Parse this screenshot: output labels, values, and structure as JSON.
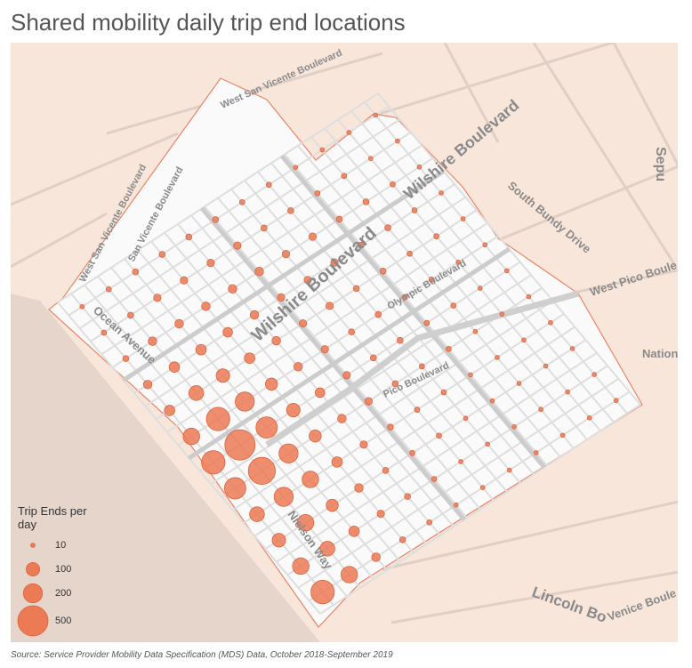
{
  "title": "Shared mobility daily trip end locations",
  "source": "Source: Service Provider Mobility Data Specification (MDS) Data, October 2018-September 2019",
  "legend": {
    "title": "Trip Ends per day",
    "sizes": [
      10,
      100,
      200,
      500
    ]
  },
  "road_labels": [
    "West San Vicente Boulevard",
    "Wilshire Boulevard",
    "South Bundy Drive",
    "Sepu",
    "West Pico Boule",
    "Nation",
    "Olympic Boulevard",
    "Pico Boulevard",
    "Ocean Avenue",
    "Nielson Way",
    "San Vicente Boulevard",
    "West San Vicente Boulevard",
    "Wilshire Boulevard",
    "Lincoln Bo",
    "Venice Boule"
  ],
  "trip_ends": [
    [
      300,
      150,
      40,
      20,
      15,
      10,
      10,
      10,
      10,
      10,
      10,
      10
    ],
    [
      150,
      120,
      60,
      30,
      20,
      15,
      10,
      10,
      10,
      10,
      10,
      10
    ],
    [
      100,
      150,
      80,
      40,
      20,
      15,
      15,
      10,
      10,
      10,
      10,
      10
    ],
    [
      120,
      200,
      150,
      60,
      30,
      20,
      15,
      15,
      10,
      10,
      10,
      10
    ],
    [
      250,
      400,
      200,
      80,
      40,
      30,
      20,
      15,
      15,
      10,
      10,
      10
    ],
    [
      300,
      500,
      250,
      100,
      50,
      30,
      20,
      20,
      15,
      15,
      10,
      10
    ],
    [
      150,
      300,
      200,
      80,
      40,
      30,
      20,
      20,
      15,
      15,
      10,
      10
    ],
    [
      60,
      120,
      100,
      60,
      40,
      30,
      30,
      20,
      20,
      15,
      15,
      10
    ],
    [
      40,
      60,
      60,
      50,
      40,
      30,
      30,
      30,
      20,
      20,
      15,
      10
    ],
    [
      20,
      40,
      40,
      40,
      40,
      40,
      30,
      30,
      20,
      20,
      15,
      10
    ],
    [
      15,
      20,
      30,
      30,
      30,
      30,
      20,
      20,
      15,
      15,
      10,
      10
    ],
    [
      10,
      15,
      20,
      20,
      20,
      20,
      15,
      15,
      10,
      10,
      10,
      10
    ]
  ]
}
